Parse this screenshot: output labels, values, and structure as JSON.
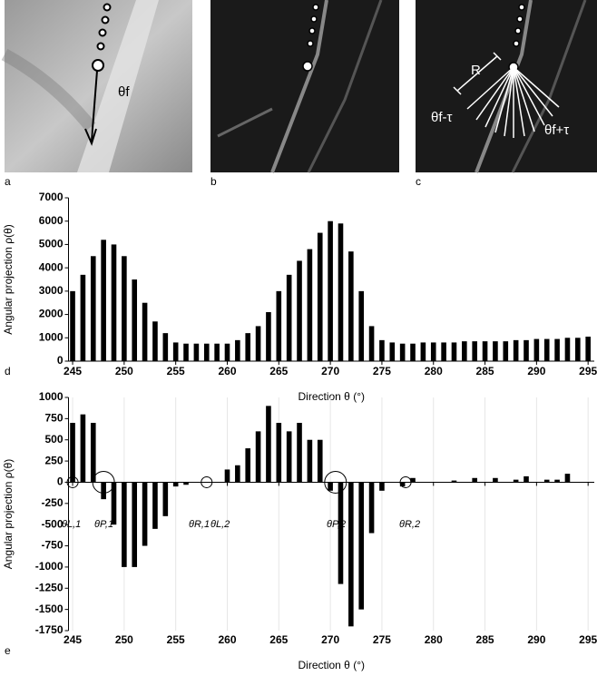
{
  "panels": [
    {
      "label": "a",
      "annotations": [
        "θf"
      ]
    },
    {
      "label": "b"
    },
    {
      "label": "c",
      "annotations": [
        "R",
        "θf-τ",
        "θf+τ"
      ]
    }
  ],
  "chart_data": [
    {
      "type": "bar",
      "label": "d",
      "y_label": "Angular projection ρ(θ)",
      "x_label": "Direction  θ (°)",
      "color": "#000000",
      "x": [
        245,
        246,
        247,
        248,
        249,
        250,
        251,
        252,
        253,
        254,
        255,
        256,
        257,
        258,
        259,
        260,
        261,
        262,
        263,
        264,
        265,
        266,
        267,
        268,
        269,
        270,
        271,
        272,
        273,
        274,
        275,
        276,
        277,
        278,
        279,
        280,
        281,
        282,
        283,
        284,
        285,
        286,
        287,
        288,
        289,
        290,
        291,
        292,
        293,
        294,
        295
      ],
      "values": [
        3000,
        3700,
        4500,
        5200,
        5000,
        4500,
        3500,
        2500,
        1700,
        1200,
        800,
        750,
        750,
        750,
        750,
        750,
        900,
        1200,
        1500,
        2100,
        3000,
        3700,
        4300,
        4800,
        5500,
        6000,
        5900,
        4700,
        3000,
        1500,
        900,
        800,
        750,
        750,
        800,
        800,
        800,
        800,
        850,
        850,
        850,
        850,
        850,
        900,
        900,
        950,
        950,
        950,
        1000,
        1000,
        1050
      ],
      "xlim": [
        244.6,
        295.6
      ],
      "ylim": [
        0,
        7000
      ],
      "xticks": [
        245,
        250,
        255,
        260,
        265,
        270,
        275,
        280,
        285,
        290,
        295
      ],
      "yticks": [
        0,
        1000,
        2000,
        3000,
        4000,
        5000,
        6000,
        7000
      ],
      "xgrid": false
    },
    {
      "type": "bar",
      "label": "e",
      "y_label": "Angular projection ρ(θ)",
      "x_label": "Direction  θ (°)",
      "color": "#000000",
      "x": [
        245,
        246,
        247,
        248,
        249,
        250,
        251,
        252,
        253,
        254,
        255,
        256,
        257,
        258,
        259,
        260,
        261,
        262,
        263,
        264,
        265,
        266,
        267,
        268,
        269,
        270,
        271,
        272,
        273,
        274,
        275,
        276,
        277,
        278,
        279,
        280,
        281,
        282,
        283,
        284,
        285,
        286,
        287,
        288,
        289,
        290,
        291,
        292,
        293,
        294,
        295
      ],
      "values": [
        700,
        800,
        700,
        -200,
        -500,
        -1000,
        -1000,
        -750,
        -550,
        -400,
        -50,
        -30,
        0,
        0,
        0,
        150,
        200,
        400,
        600,
        900,
        700,
        600,
        700,
        500,
        500,
        -100,
        -1200,
        -1700,
        -1500,
        -600,
        -100,
        0,
        -50,
        50,
        0,
        0,
        0,
        20,
        0,
        50,
        0,
        50,
        0,
        30,
        70,
        0,
        30,
        30,
        100,
        0,
        0
      ],
      "xlim": [
        244.6,
        295.6
      ],
      "ylim": [
        -1750,
        1000
      ],
      "xticks": [
        245,
        250,
        255,
        260,
        265,
        270,
        275,
        280,
        285,
        290,
        295
      ],
      "yticks": [
        -1750,
        -1500,
        -1250,
        -1000,
        -750,
        -500,
        -250,
        0,
        250,
        500,
        750,
        1000
      ],
      "xgrid": true,
      "annotations": [
        "θL,1",
        "θP,1",
        "θR,1",
        "θL,2",
        "θP,2",
        "θR,2"
      ]
    }
  ]
}
